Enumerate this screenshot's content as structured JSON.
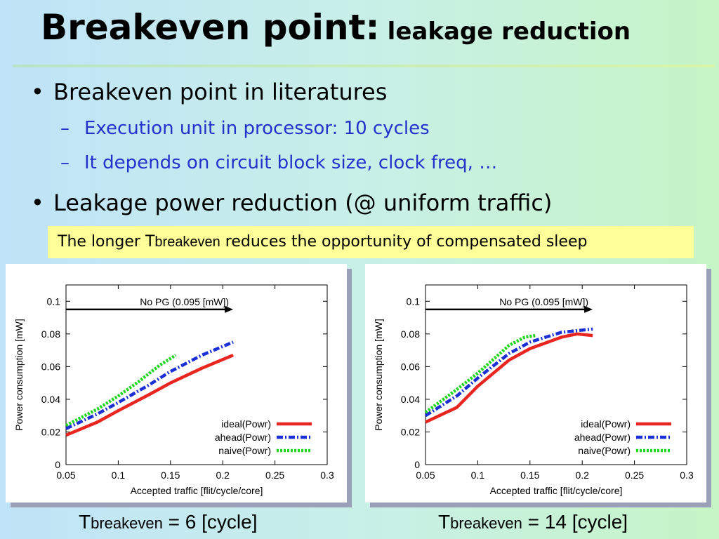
{
  "title": {
    "main": "Breakeven point:",
    "sub": "leakage reduction"
  },
  "bullets": {
    "b1": "Breakeven point in literatures",
    "b1_sub1": "Execution unit in processor: 10 cycles",
    "b1_sub2": "It depends on circuit block size, clock freq, …",
    "b2": "Leakage power reduction (@ uniform traffic)"
  },
  "note": {
    "pre": "The longer T",
    "subscript": "breakeven",
    "post": " reduces the opportunity of compensated sleep"
  },
  "captions": [
    {
      "pre": "T",
      "subscript": "breakeven",
      "post": " = 6 [cycle]"
    },
    {
      "pre": "T",
      "subscript": "breakeven",
      "post": " = 14 [cycle]"
    }
  ],
  "colors": {
    "ideal": "#e8251f",
    "ahead": "#1a2fd6",
    "naive": "#1ed61e",
    "highlight": "#ffff99",
    "subtext": "#2233cc"
  },
  "chart_data": [
    {
      "type": "line",
      "xlabel": "Accepted traffic [flit/cycle/core]",
      "ylabel": "Power consumption [mW]",
      "xlim": [
        0.05,
        0.3
      ],
      "ylim": [
        0,
        0.11
      ],
      "xticks": [
        "0.05",
        "0.1",
        "0.15",
        "0.2",
        "0.25",
        "0.3"
      ],
      "yticks": [
        "0",
        "0.02",
        "0.04",
        "0.06",
        "0.08",
        "0.1"
      ],
      "legend_position": "bottom-right",
      "grid": false,
      "annotation": {
        "text": "No PG (0.095 [mW])",
        "y": 0.095,
        "x_end": 0.21
      },
      "series": [
        {
          "name": "ideal(Powr)",
          "color_key": "ideal",
          "style": "solid",
          "x": [
            0.05,
            0.08,
            0.1,
            0.13,
            0.15,
            0.18,
            0.21
          ],
          "y": [
            0.018,
            0.026,
            0.033,
            0.043,
            0.05,
            0.059,
            0.067
          ]
        },
        {
          "name": "ahead(Powr)",
          "color_key": "ahead",
          "style": "dashdot",
          "x": [
            0.05,
            0.08,
            0.1,
            0.13,
            0.15,
            0.18,
            0.21
          ],
          "y": [
            0.022,
            0.031,
            0.038,
            0.049,
            0.057,
            0.067,
            0.075
          ]
        },
        {
          "name": "naive(Powr)",
          "color_key": "naive",
          "style": "dotted",
          "x": [
            0.05,
            0.08,
            0.1,
            0.12,
            0.14,
            0.155
          ],
          "y": [
            0.024,
            0.034,
            0.042,
            0.051,
            0.061,
            0.067
          ]
        }
      ]
    },
    {
      "type": "line",
      "xlabel": "Accepted traffic [flit/cycle/core]",
      "ylabel": "Power consumption [mW]",
      "xlim": [
        0.05,
        0.3
      ],
      "ylim": [
        0,
        0.11
      ],
      "xticks": [
        "0.05",
        "0.1",
        "0.15",
        "0.2",
        "0.25",
        "0.3"
      ],
      "yticks": [
        "0",
        "0.02",
        "0.04",
        "0.06",
        "0.08",
        "0.1"
      ],
      "legend_position": "bottom-right",
      "grid": false,
      "annotation": {
        "text": "No PG (0.095 [mW])",
        "y": 0.095,
        "x_end": 0.21
      },
      "series": [
        {
          "name": "ideal(Powr)",
          "color_key": "ideal",
          "style": "solid",
          "x": [
            0.05,
            0.08,
            0.1,
            0.13,
            0.15,
            0.18,
            0.195,
            0.21
          ],
          "y": [
            0.026,
            0.035,
            0.048,
            0.064,
            0.071,
            0.078,
            0.08,
            0.079
          ]
        },
        {
          "name": "ahead(Powr)",
          "color_key": "ahead",
          "style": "dashdot",
          "x": [
            0.05,
            0.08,
            0.1,
            0.13,
            0.15,
            0.18,
            0.21
          ],
          "y": [
            0.03,
            0.042,
            0.053,
            0.068,
            0.075,
            0.081,
            0.083
          ]
        },
        {
          "name": "naive(Powr)",
          "color_key": "naive",
          "style": "dotted",
          "x": [
            0.05,
            0.08,
            0.1,
            0.13,
            0.145,
            0.155
          ],
          "y": [
            0.032,
            0.046,
            0.056,
            0.073,
            0.078,
            0.079
          ]
        }
      ]
    }
  ]
}
